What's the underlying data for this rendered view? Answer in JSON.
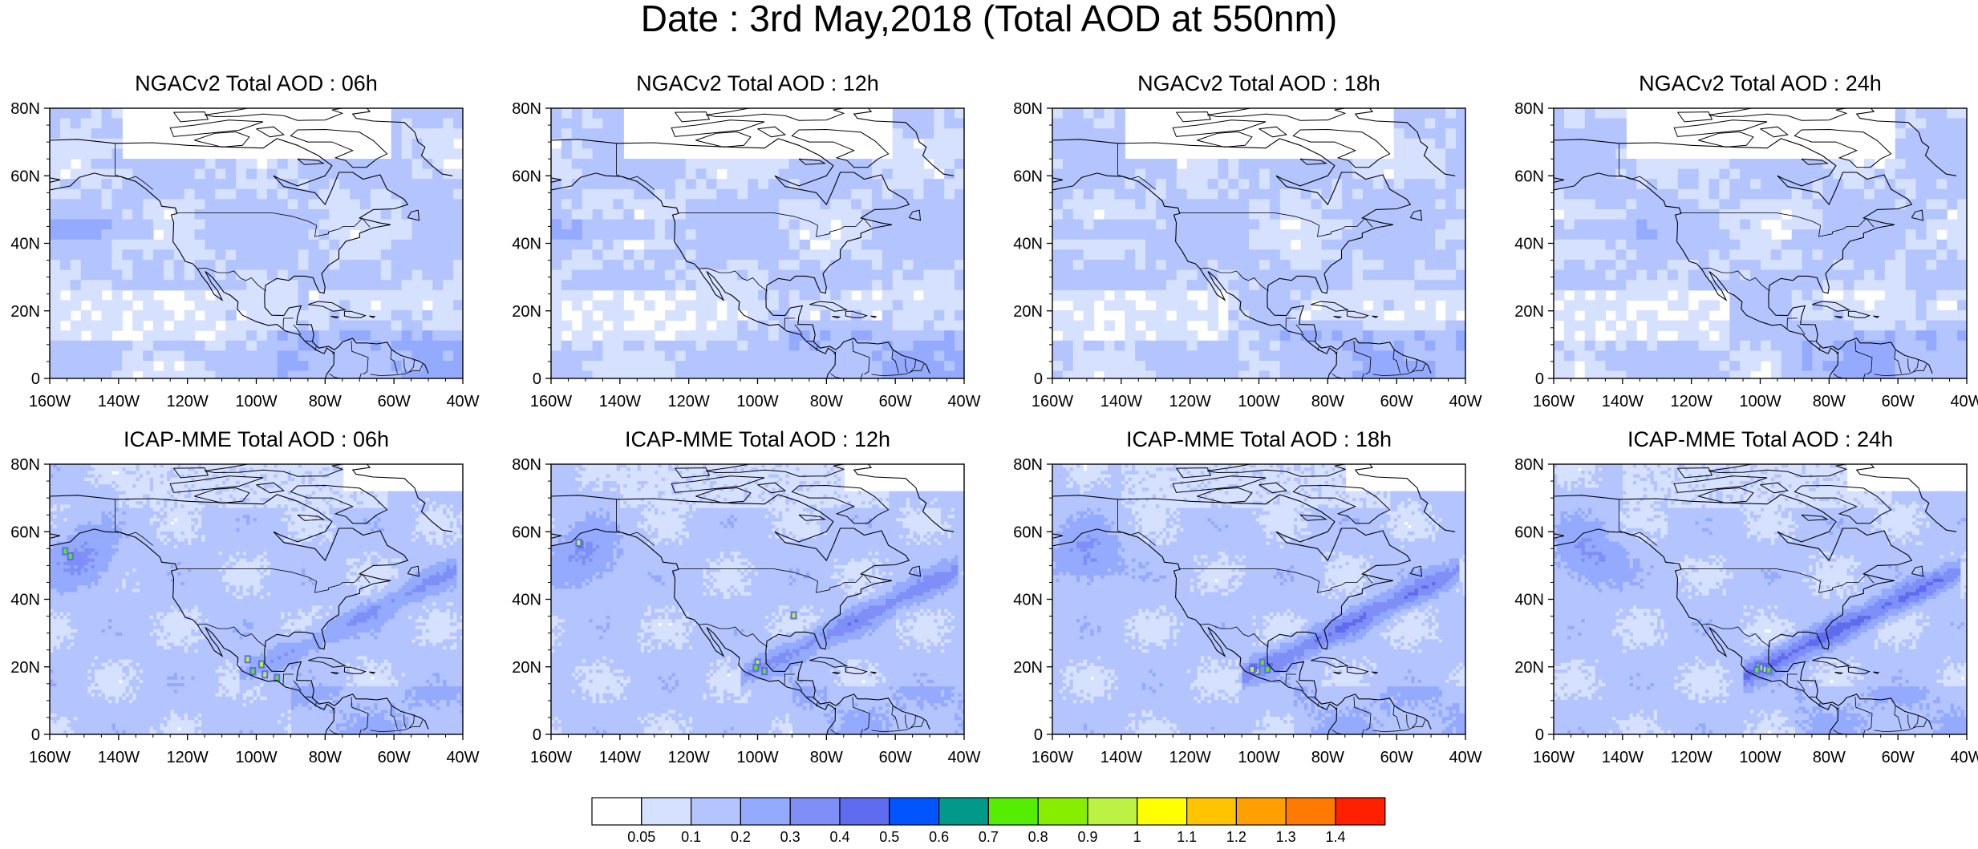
{
  "title": "Date : 3rd May,2018 (Total AOD at 550nm)",
  "lat_labels": [
    "0",
    "20N",
    "40N",
    "60N",
    "80N"
  ],
  "lon_labels": [
    "160W",
    "140W",
    "120W",
    "100W",
    "80W",
    "60W",
    "40W"
  ],
  "panels": [
    {
      "title": "NGACv2 Total AOD : 06h",
      "model": "NGACv2",
      "hour": "06h"
    },
    {
      "title": "NGACv2 Total AOD : 12h",
      "model": "NGACv2",
      "hour": "12h"
    },
    {
      "title": "NGACv2 Total AOD : 18h",
      "model": "NGACv2",
      "hour": "18h"
    },
    {
      "title": "NGACv2 Total AOD : 24h",
      "model": "NGACv2",
      "hour": "24h"
    },
    {
      "title": "ICAP-MME Total AOD : 06h",
      "model": "ICAP-MME",
      "hour": "06h"
    },
    {
      "title": "ICAP-MME Total AOD : 12h",
      "model": "ICAP-MME",
      "hour": "12h"
    },
    {
      "title": "ICAP-MME Total AOD : 18h",
      "model": "ICAP-MME",
      "hour": "18h"
    },
    {
      "title": "ICAP-MME Total AOD : 24h",
      "model": "ICAP-MME",
      "hour": "24h"
    }
  ],
  "colorbar": {
    "labels": [
      "0.05",
      "0.1",
      "0.2",
      "0.3",
      "0.4",
      "0.5",
      "0.6",
      "0.7",
      "0.8",
      "0.9",
      "1",
      "1.1",
      "1.2",
      "1.3",
      "1.4"
    ],
    "colors": [
      "#ffffff",
      "#d6e0ff",
      "#b3c4ff",
      "#94aaff",
      "#7f8ff7",
      "#5f6cf0",
      "#0055ff",
      "#00998a",
      "#55ee00",
      "#88ee00",
      "#bbf244",
      "#ffff00",
      "#ffc400",
      "#ffa000",
      "#ff7a00",
      "#ff2000"
    ]
  }
}
